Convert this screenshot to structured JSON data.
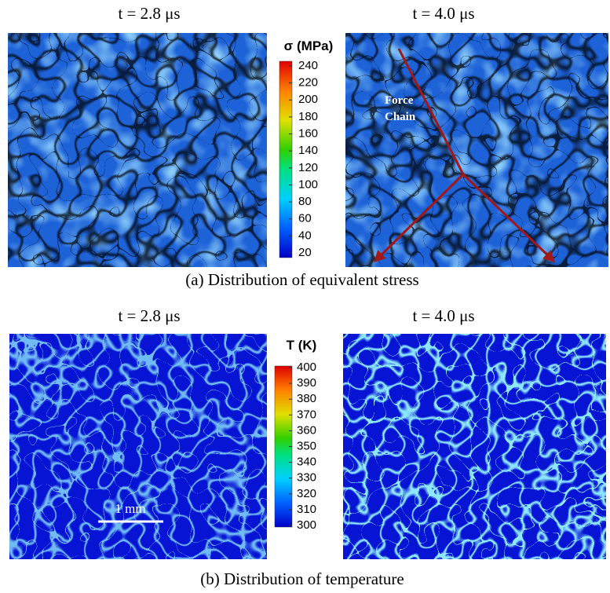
{
  "panels": [
    {
      "times": [
        "t = 2.8 μs",
        "t = 4.0 μs"
      ],
      "colorbar": {
        "title": "σ (MPa)",
        "ticks": [
          240,
          220,
          200,
          180,
          160,
          140,
          120,
          100,
          80,
          60,
          40,
          20
        ]
      },
      "annotation": [
        "Force",
        "Chain"
      ],
      "caption": "(a) Distribution of equivalent stress"
    },
    {
      "times": [
        "t = 2.8 μs",
        "t = 4.0 μs"
      ],
      "colorbar": {
        "title": "T (K)",
        "ticks": [
          400,
          390,
          380,
          370,
          360,
          350,
          340,
          330,
          320,
          310,
          300
        ]
      },
      "caption": "(b) Distribution of temperature"
    }
  ],
  "scale_bar": "1 mm"
}
